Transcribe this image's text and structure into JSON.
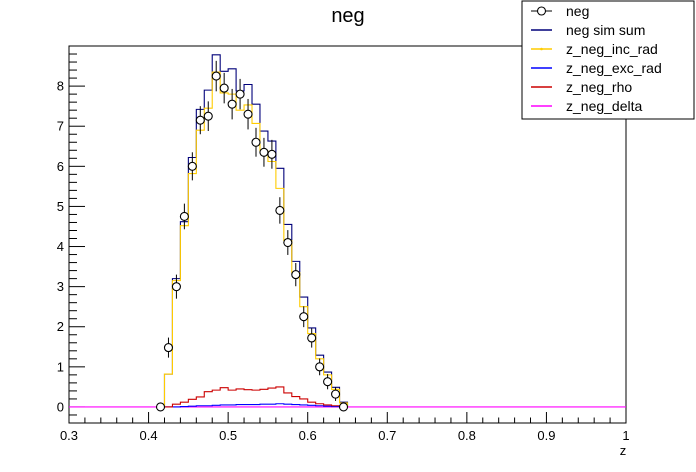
{
  "chart_data": {
    "type": "line",
    "title": "neg",
    "xlabel": "z",
    "ylabel": "",
    "xlim": [
      0.3,
      1.0
    ],
    "ylim": [
      -0.4,
      9.0
    ],
    "x_ticks": [
      "0.3",
      "0.4",
      "0.5",
      "0.6",
      "0.7",
      "0.8",
      "0.9",
      "1"
    ],
    "y_ticks": [
      "0",
      "1",
      "2",
      "3",
      "4",
      "5",
      "6",
      "7",
      "8"
    ],
    "grid": false,
    "legend_position": "top-right",
    "bin_edges": [
      0.41,
      0.42,
      0.43,
      0.44,
      0.45,
      0.46,
      0.47,
      0.48,
      0.49,
      0.5,
      0.51,
      0.52,
      0.53,
      0.54,
      0.55,
      0.56,
      0.57,
      0.58,
      0.59,
      0.6,
      0.61,
      0.62,
      0.63,
      0.64,
      0.65
    ],
    "series": [
      {
        "name": "neg",
        "style": "points",
        "color": "#000000",
        "x": [
          0.415,
          0.425,
          0.435,
          0.445,
          0.455,
          0.465,
          0.475,
          0.485,
          0.495,
          0.505,
          0.515,
          0.525,
          0.535,
          0.545,
          0.555,
          0.565,
          0.575,
          0.585,
          0.595,
          0.605,
          0.615,
          0.625,
          0.635,
          0.645
        ],
        "y": [
          0.0,
          1.48,
          3.0,
          4.75,
          6.0,
          7.15,
          7.25,
          8.25,
          7.95,
          7.55,
          7.8,
          7.3,
          6.6,
          6.35,
          6.3,
          4.9,
          4.1,
          3.3,
          2.25,
          1.72,
          1.0,
          0.63,
          0.32,
          0.0
        ],
        "err": [
          0.0,
          0.15,
          0.2,
          0.22,
          0.25,
          0.25,
          0.27,
          0.28,
          0.28,
          0.28,
          0.28,
          0.28,
          0.26,
          0.26,
          0.26,
          0.23,
          0.21,
          0.19,
          0.16,
          0.14,
          0.11,
          0.09,
          0.07,
          0.0
        ]
      },
      {
        "name": "neg sim sum",
        "style": "step",
        "color": "#00007a",
        "values": [
          0.0,
          0.82,
          3.2,
          4.62,
          6.22,
          7.42,
          7.9,
          8.78,
          8.37,
          8.43,
          7.88,
          8.04,
          7.55,
          6.88,
          6.63,
          5.95,
          4.55,
          3.63,
          2.74,
          1.97,
          1.29,
          0.87,
          0.49,
          0.12
        ]
      },
      {
        "name": "z_neg_inc_rad",
        "style": "step",
        "color": "#ffcc00",
        "values": [
          0.0,
          0.82,
          3.15,
          4.52,
          5.82,
          6.9,
          7.45,
          8.35,
          7.83,
          7.8,
          7.4,
          7.53,
          7.07,
          6.38,
          6.12,
          5.45,
          4.15,
          3.35,
          2.5,
          1.83,
          1.2,
          0.8,
          0.44,
          0.1
        ]
      },
      {
        "name": "z_neg_exc_rad",
        "style": "step",
        "color": "#0000ff",
        "values": [
          0.0,
          0.0,
          0.0,
          0.01,
          0.02,
          0.03,
          0.03,
          0.04,
          0.05,
          0.05,
          0.06,
          0.06,
          0.06,
          0.07,
          0.07,
          0.08,
          0.07,
          0.06,
          0.05,
          0.04,
          0.03,
          0.02,
          0.01,
          0.0
        ]
      },
      {
        "name": "z_neg_rho",
        "style": "step",
        "color": "#cc0000",
        "values": [
          0.0,
          0.0,
          0.07,
          0.12,
          0.19,
          0.25,
          0.38,
          0.42,
          0.48,
          0.42,
          0.45,
          0.43,
          0.42,
          0.44,
          0.47,
          0.5,
          0.35,
          0.26,
          0.2,
          0.12,
          0.08,
          0.05,
          0.03,
          0.0
        ]
      },
      {
        "name": "z_neg_delta",
        "style": "line",
        "color": "#ff00ff",
        "values": [
          0.0,
          0.0,
          0.0,
          0.0,
          0.0,
          0.0,
          0.0,
          0.0,
          0.0,
          0.0,
          0.0,
          0.0,
          0.0,
          0.0,
          0.0,
          0.0,
          0.0,
          0.0,
          0.0,
          0.0,
          0.0,
          0.0,
          0.0,
          0.0
        ]
      }
    ]
  }
}
